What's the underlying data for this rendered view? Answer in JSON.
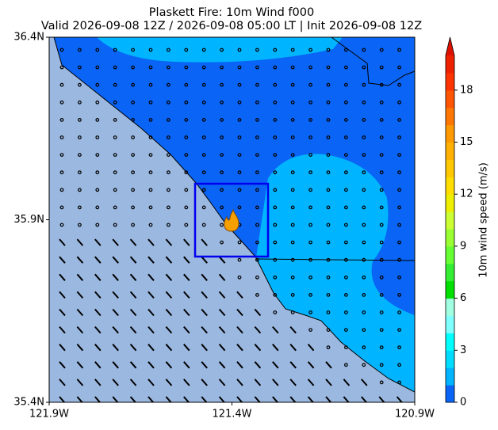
{
  "chart_data": {
    "type": "map",
    "title": "Plaskett Fire: 10m Wind f000",
    "subtitle": "Valid 2026-09-08 12Z / 2026-09-08 05:00 LT | Init 2026-09-08 12Z",
    "xlim": [
      -121.9,
      -120.9
    ],
    "ylim": [
      35.4,
      36.4
    ],
    "xticks": [
      {
        "value": -121.9,
        "label": "121.9W"
      },
      {
        "value": -121.4,
        "label": "121.4W"
      },
      {
        "value": -120.9,
        "label": "120.9W"
      }
    ],
    "yticks": [
      {
        "value": 35.4,
        "label": "35.4N"
      },
      {
        "value": 35.9,
        "label": "35.9N"
      },
      {
        "value": 36.4,
        "label": "36.4N"
      }
    ],
    "colorbar": {
      "label": "10m wind speed (m/s)",
      "lim": [
        0,
        20
      ],
      "ticks": [
        0,
        3,
        6,
        9,
        12,
        15,
        18
      ],
      "colors": [
        "#0a64f5",
        "#00b4ff",
        "#00dcff",
        "#00ffff",
        "#80ffff",
        "#a0ffe0",
        "#00e000",
        "#33ee33",
        "#66ff33",
        "#99ff33",
        "#ccff33",
        "#eeee00",
        "#ffdd00",
        "#ffc800",
        "#ffb000",
        "#ff9900",
        "#ff7700",
        "#ff5500",
        "#ff3300",
        "#ee2200"
      ],
      "over_color": "#dd1100"
    }
  }
}
